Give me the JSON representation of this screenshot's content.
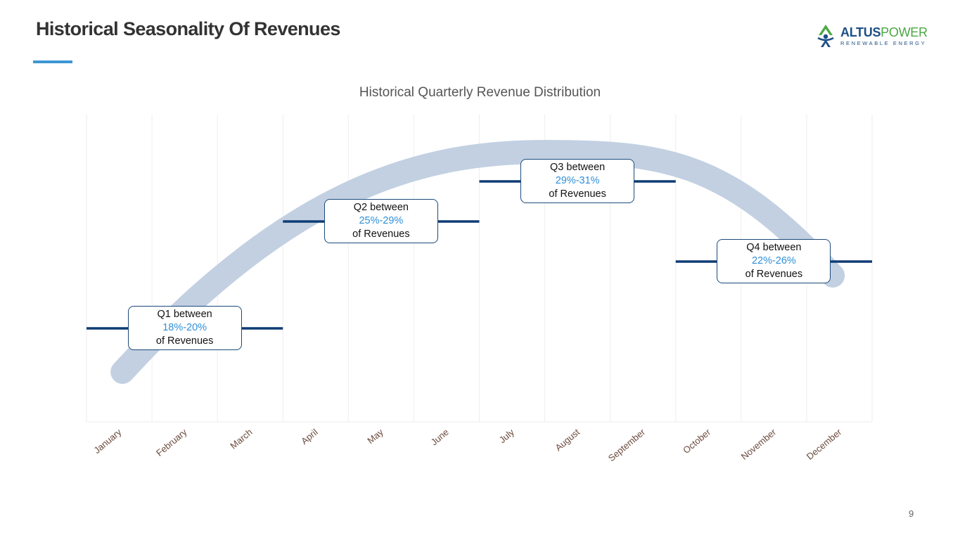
{
  "slide": {
    "title": "Historical Seasonality Of Revenues",
    "page_number": "9"
  },
  "logo": {
    "name_bold": "ALTUS",
    "name_light": "POWER",
    "tagline": "RENEWABLE ENERGY",
    "icon": "altus-power-logo-icon",
    "colors": {
      "blue": "#1d4f86",
      "green": "#4aa843"
    }
  },
  "colors": {
    "accent": "#3d97d3",
    "quarter_line": "#0e3c74",
    "trend_band": "#c2d0e2",
    "grid": "#eeeeee",
    "month_label": "#6b4a3c",
    "callout_border": "#1b4a7a",
    "callout_range": "#2f8fd8"
  },
  "chart_data": {
    "type": "line",
    "title": "Historical Quarterly Revenue Distribution",
    "categories": [
      "January",
      "February",
      "March",
      "April",
      "May",
      "June",
      "July",
      "August",
      "September",
      "October",
      "November",
      "December"
    ],
    "grid": "vertical",
    "quarters": [
      {
        "label_top": "Q1 between",
        "range": "18%-20%",
        "label_bottom": "of Revenues",
        "low": 18,
        "high": 20,
        "start_month": 0,
        "end_month": 2
      },
      {
        "label_top": "Q2 between",
        "range": "25%-29%",
        "label_bottom": "of Revenues",
        "low": 25,
        "high": 29,
        "start_month": 3,
        "end_month": 5
      },
      {
        "label_top": "Q3 between",
        "range": "29%-31%",
        "label_bottom": "of Revenues",
        "low": 29,
        "high": 31,
        "start_month": 6,
        "end_month": 8
      },
      {
        "label_top": "Q4 between",
        "range": "22%-26%",
        "label_bottom": "of Revenues",
        "low": 22,
        "high": 26,
        "start_month": 9,
        "end_month": 11
      }
    ],
    "trend": "seasonal arc peaking in Q3"
  }
}
